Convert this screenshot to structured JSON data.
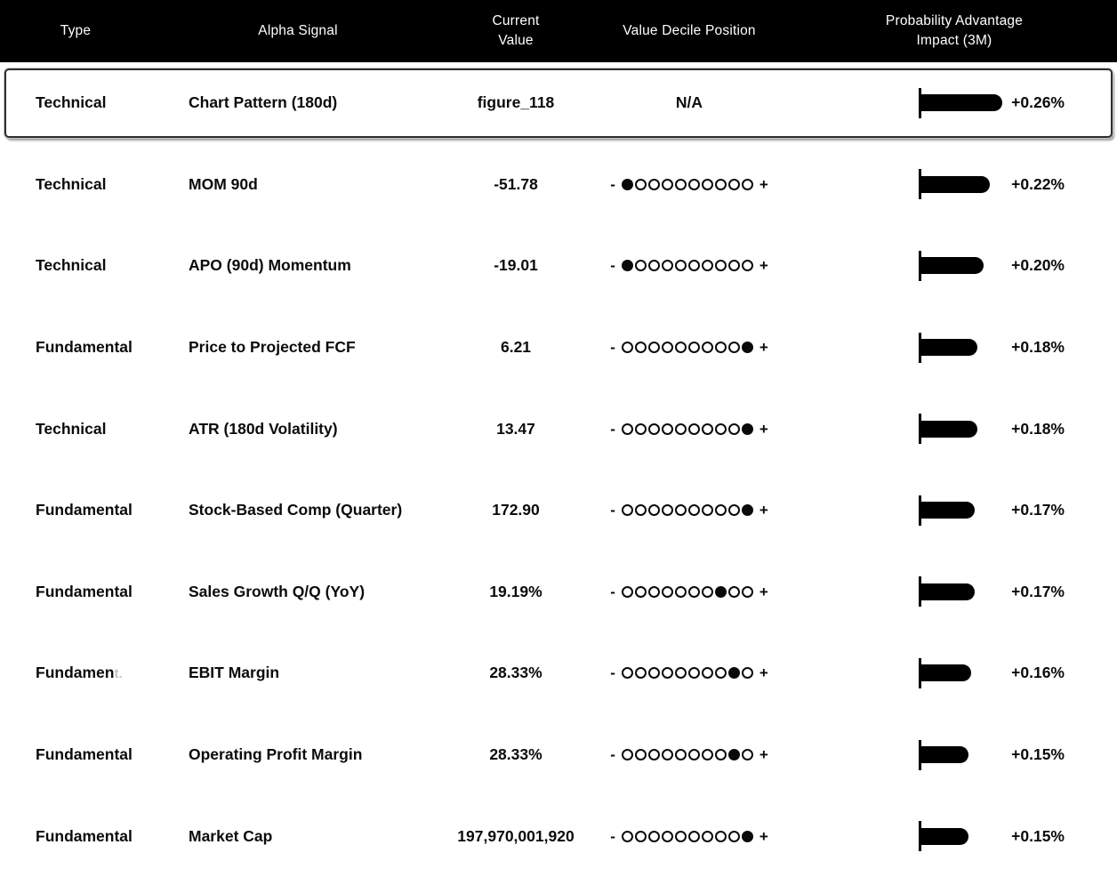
{
  "colors": {
    "header_bg": "#000000",
    "header_text": "#ffffff",
    "body_text": "#0b0b0b",
    "bar_fill": "#000000"
  },
  "header": {
    "col_type": "Type",
    "col_signal": "Alpha Signal",
    "col_value": "Current\nValue",
    "col_decile": "Value Decile Position",
    "col_impact": "Probability Advantage\nImpact (3M)"
  },
  "decile_scale": {
    "min_label": "-",
    "max_label": "+",
    "dot_count": 10
  },
  "rows": [
    {
      "type": "Technical",
      "type_faded": "",
      "signal": "Chart Pattern (180d)",
      "value": "figure_118",
      "decile": null,
      "decile_display": "N/A",
      "impact": "+0.26%",
      "impact_value": 0.26,
      "selected": true
    },
    {
      "type": "Technical",
      "type_faded": "",
      "signal": "MOM 90d",
      "value": "-51.78",
      "decile": 1,
      "decile_display": "",
      "impact": "+0.22%",
      "impact_value": 0.22,
      "selected": false
    },
    {
      "type": "Technical",
      "type_faded": "",
      "signal": "APO (90d) Momentum",
      "value": "-19.01",
      "decile": 1,
      "decile_display": "",
      "impact": "+0.20%",
      "impact_value": 0.2,
      "selected": false
    },
    {
      "type": "Fundamental",
      "type_faded": "",
      "signal": "Price to Projected FCF",
      "value": "6.21",
      "decile": 10,
      "decile_display": "",
      "impact": "+0.18%",
      "impact_value": 0.18,
      "selected": false
    },
    {
      "type": "Technical",
      "type_faded": "",
      "signal": "ATR (180d Volatility)",
      "value": "13.47",
      "decile": 10,
      "decile_display": "",
      "impact": "+0.18%",
      "impact_value": 0.18,
      "selected": false
    },
    {
      "type": "Fundamental",
      "type_faded": "",
      "signal": "Stock-Based Comp (Quarter)",
      "value": "172.90",
      "decile": 10,
      "decile_display": "",
      "impact": "+0.17%",
      "impact_value": 0.17,
      "selected": false
    },
    {
      "type": "Fundamental",
      "type_faded": "",
      "signal": "Sales Growth Q/Q (YoY)",
      "value": "19.19%",
      "decile": 8,
      "decile_display": "",
      "impact": "+0.17%",
      "impact_value": 0.17,
      "selected": false
    },
    {
      "type": "Fundamen",
      "type_faded": "t.",
      "signal": "EBIT Margin",
      "value": "28.33%",
      "decile": 9,
      "decile_display": "",
      "impact": "+0.16%",
      "impact_value": 0.16,
      "selected": false
    },
    {
      "type": "Fundamental",
      "type_faded": "",
      "signal": "Operating Profit Margin",
      "value": "28.33%",
      "decile": 9,
      "decile_display": "",
      "impact": "+0.15%",
      "impact_value": 0.15,
      "selected": false
    },
    {
      "type": "Fundamental",
      "type_faded": "",
      "signal": "Market Cap",
      "value": "197,970,001,920",
      "decile": 10,
      "decile_display": "",
      "impact": "+0.15%",
      "impact_value": 0.15,
      "selected": false
    }
  ]
}
